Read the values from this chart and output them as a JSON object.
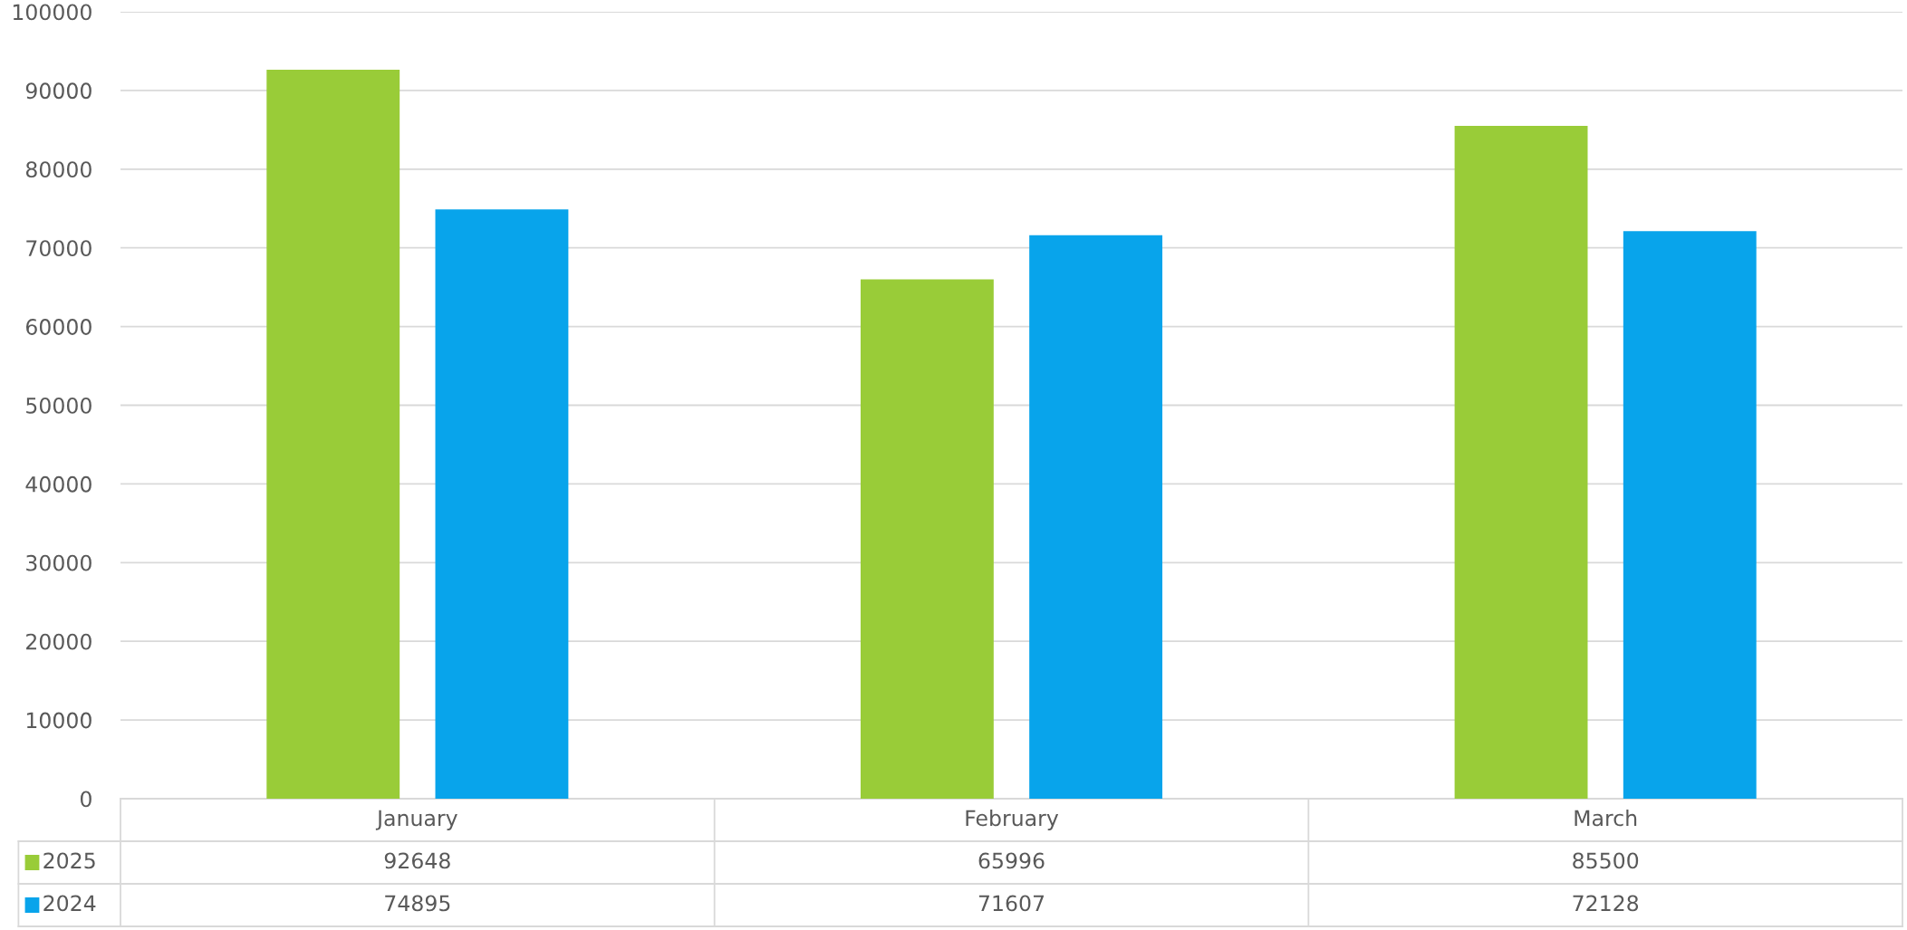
{
  "chart_data": {
    "type": "bar",
    "categories": [
      "January",
      "February",
      "March"
    ],
    "series": [
      {
        "name": "2025",
        "color": "#99cc38",
        "values": [
          92648,
          65996,
          85500
        ]
      },
      {
        "name": "2024",
        "color": "#08a4eb",
        "values": [
          74895,
          71607,
          72128
        ]
      }
    ],
    "ylim": [
      0,
      100000
    ],
    "yticks": [
      0,
      10000,
      20000,
      30000,
      40000,
      50000,
      60000,
      70000,
      80000,
      90000,
      100000
    ],
    "grid": "y",
    "data_labels": true,
    "legend": "bottom left"
  }
}
